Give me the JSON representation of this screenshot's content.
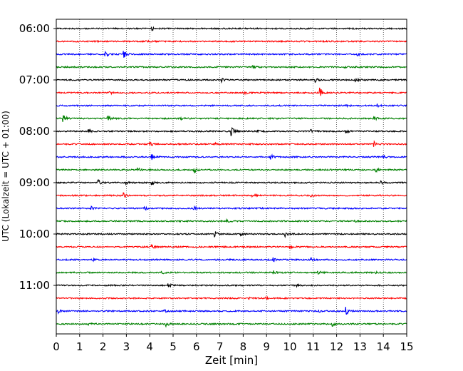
{
  "chart_data": {
    "type": "line",
    "subtype": "helicorder",
    "title": "",
    "xlabel": "Zeit  [min]",
    "ylabel": "UTC (Lokalzeit = UTC + 01:00)",
    "xlim": [
      0,
      15
    ],
    "x_ticks": [
      "0",
      "1",
      "2",
      "3",
      "4",
      "5",
      "6",
      "7",
      "8",
      "9",
      "10",
      "11",
      "12",
      "13",
      "14",
      "15"
    ],
    "grid": "vertical dotted at each minute",
    "line_start_times": [
      "06:00",
      "06:15",
      "06:30",
      "06:45",
      "07:00",
      "07:15",
      "07:30",
      "07:45",
      "08:00",
      "08:15",
      "08:30",
      "08:45",
      "09:00",
      "09:15",
      "09:30",
      "09:45",
      "10:00",
      "10:15",
      "10:30",
      "10:45",
      "11:00",
      "11:15",
      "11:30",
      "11:45"
    ],
    "y_tick_labels": [
      {
        "label": "06:00",
        "line_index": 0
      },
      {
        "label": "07:00",
        "line_index": 4
      },
      {
        "label": "08:00",
        "line_index": 8
      },
      {
        "label": "09:00",
        "line_index": 12
      },
      {
        "label": "10:00",
        "line_index": 16
      },
      {
        "label": "11:00",
        "line_index": 20
      }
    ],
    "colors": [
      "#000000",
      "#ff0000",
      "#0000ff",
      "#008000"
    ],
    "events": [
      [
        [
          4.1,
          0.35
        ]
      ],
      [
        [
          3.8,
          0.3
        ]
      ],
      [
        [
          2.1,
          0.6
        ],
        [
          2.9,
          0.75
        ],
        [
          12.9,
          0.25
        ]
      ],
      [
        [
          8.4,
          0.4
        ],
        [
          12.3,
          0.2
        ]
      ],
      [
        [
          7.1,
          0.35
        ],
        [
          11.1,
          0.45
        ],
        [
          12.8,
          0.45
        ]
      ],
      [
        [
          2.3,
          0.4
        ],
        [
          8.1,
          0.25
        ],
        [
          11.3,
          0.95
        ]
      ],
      [
        [
          13.7,
          0.45
        ],
        [
          12.4,
          0.2
        ]
      ],
      [
        [
          0.3,
          0.95
        ],
        [
          2.2,
          1.0
        ],
        [
          5.3,
          0.3
        ],
        [
          13.6,
          0.4
        ]
      ],
      [
        [
          1.4,
          0.3
        ],
        [
          7.5,
          0.85
        ],
        [
          10.9,
          0.4
        ],
        [
          12.4,
          0.45
        ],
        [
          8.6,
          0.2
        ]
      ],
      [
        [
          4.0,
          0.55
        ],
        [
          13.6,
          0.45
        ],
        [
          6.8,
          0.2
        ]
      ],
      [
        [
          4.1,
          0.55
        ],
        [
          9.2,
          0.45
        ],
        [
          14.0,
          0.3
        ]
      ],
      [
        [
          3.5,
          0.35
        ],
        [
          5.9,
          0.75
        ],
        [
          13.7,
          0.3
        ]
      ],
      [
        [
          1.8,
          0.5
        ],
        [
          4.1,
          0.35
        ],
        [
          13.9,
          0.35
        ],
        [
          3.0,
          0.2
        ]
      ],
      [
        [
          2.9,
          0.45
        ],
        [
          8.4,
          0.4
        ],
        [
          10.9,
          0.2
        ]
      ],
      [
        [
          1.5,
          0.3
        ],
        [
          3.8,
          0.3
        ],
        [
          5.9,
          0.45
        ],
        [
          8.6,
          0.25
        ]
      ],
      [
        [
          12.8,
          0.25
        ],
        [
          7.3,
          0.2
        ]
      ],
      [
        [
          6.8,
          0.45
        ],
        [
          9.8,
          0.5
        ],
        [
          7.9,
          0.25
        ]
      ],
      [
        [
          4.1,
          0.45
        ],
        [
          10.0,
          0.35
        ]
      ],
      [
        [
          9.3,
          0.4
        ],
        [
          10.9,
          0.45
        ],
        [
          1.6,
          0.2
        ]
      ],
      [
        [
          4.5,
          0.3
        ],
        [
          9.3,
          0.45
        ],
        [
          11.2,
          0.45
        ],
        [
          13.6,
          0.35
        ]
      ],
      [
        [
          4.8,
          0.45
        ],
        [
          10.3,
          0.25
        ]
      ],
      [
        [
          8.2,
          0.3
        ],
        [
          9.0,
          0.3
        ]
      ],
      [
        [
          0.1,
          0.45
        ],
        [
          4.6,
          0.35
        ],
        [
          11.2,
          0.3
        ],
        [
          12.4,
          0.75
        ]
      ],
      [
        [
          1.4,
          0.3
        ],
        [
          4.7,
          0.65
        ],
        [
          11.8,
          0.55
        ]
      ]
    ]
  }
}
